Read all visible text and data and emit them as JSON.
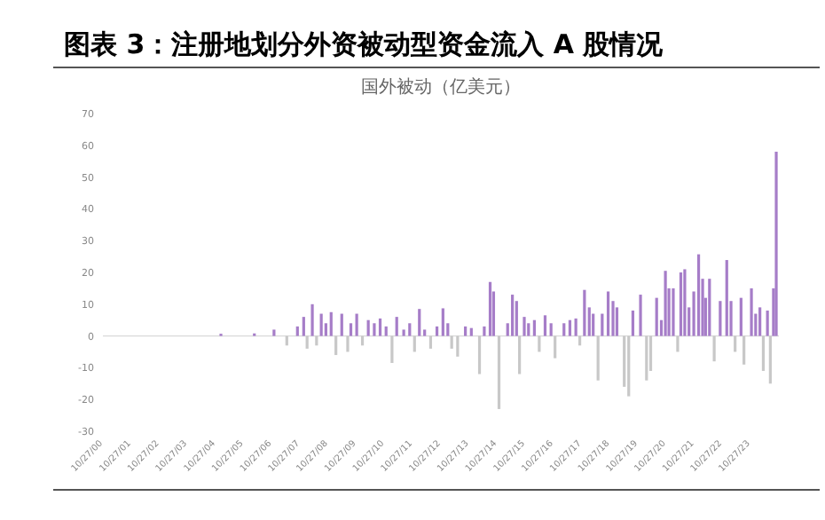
{
  "chart_data": {
    "type": "bar",
    "title": "图表 3：注册地划分外资被动型资金流入 A 股情况",
    "subtitle": "国外被动（亿美元）",
    "xlim": [
      "2000-10-27",
      "2024-10-31"
    ],
    "ylim": [
      -30,
      70
    ],
    "yticks": [
      -30,
      -20,
      -10,
      0,
      10,
      20,
      30,
      40,
      50,
      60,
      70
    ],
    "xticks": [
      {
        "value": "2000-10-27",
        "label": "10/27/00"
      },
      {
        "value": "2001-10-27",
        "label": "10/27/01"
      },
      {
        "value": "2002-10-27",
        "label": "10/27/02"
      },
      {
        "value": "2003-10-27",
        "label": "10/27/03"
      },
      {
        "value": "2004-10-27",
        "label": "10/27/04"
      },
      {
        "value": "2005-10-27",
        "label": "10/27/05"
      },
      {
        "value": "2006-10-27",
        "label": "10/27/06"
      },
      {
        "value": "2007-10-27",
        "label": "10/27/07"
      },
      {
        "value": "2008-10-27",
        "label": "10/27/08"
      },
      {
        "value": "2009-10-27",
        "label": "10/27/09"
      },
      {
        "value": "2010-10-27",
        "label": "10/27/10"
      },
      {
        "value": "2011-10-27",
        "label": "10/27/11"
      },
      {
        "value": "2012-10-27",
        "label": "10/27/12"
      },
      {
        "value": "2013-10-27",
        "label": "10/27/13"
      },
      {
        "value": "2014-10-27",
        "label": "10/27/14"
      },
      {
        "value": "2015-10-27",
        "label": "10/27/15"
      },
      {
        "value": "2016-10-27",
        "label": "10/27/16"
      },
      {
        "value": "2017-10-27",
        "label": "10/27/17"
      },
      {
        "value": "2018-10-27",
        "label": "10/27/18"
      },
      {
        "value": "2019-10-27",
        "label": "10/27/19"
      },
      {
        "value": "2020-10-27",
        "label": "10/27/20"
      },
      {
        "value": "2021-10-27",
        "label": "10/27/21"
      },
      {
        "value": "2022-10-27",
        "label": "10/27/22"
      },
      {
        "value": "2023-10-27",
        "label": "10/27/23"
      }
    ],
    "series": [
      {
        "color": "#a67dc8",
        "x": [
          "2005-01-05",
          "2006-03-15",
          "2006-11-25",
          "2007-09-25",
          "2007-12-15",
          "2008-04-05",
          "2008-07-30",
          "2008-09-28",
          "2008-12-05",
          "2009-04-22",
          "2009-08-18",
          "2009-11-02",
          "2010-04-01",
          "2010-06-18",
          "2010-09-02",
          "2010-11-18",
          "2011-04-05",
          "2011-07-05",
          "2011-09-20",
          "2012-01-24",
          "2012-04-01",
          "2012-09-08",
          "2012-11-25",
          "2013-01-27",
          "2013-09-12",
          "2013-11-28",
          "2014-05-15",
          "2014-07-30",
          "2014-09-13",
          "2015-03-14",
          "2015-05-15",
          "2015-07-08",
          "2015-10-16",
          "2015-12-10",
          "2016-02-24",
          "2016-07-12",
          "2016-09-27",
          "2017-03-14",
          "2017-05-30",
          "2017-08-15",
          "2017-12-05",
          "2018-02-05",
          "2018-03-28",
          "2018-07-23",
          "2018-10-08",
          "2018-12-10",
          "2019-01-30",
          "2019-08-25",
          "2019-12-02",
          "2020-06-28",
          "2020-08-28",
          "2020-10-20",
          "2020-12-05",
          "2021-01-30",
          "2021-05-08",
          "2021-06-28",
          "2021-08-22",
          "2021-10-23",
          "2021-12-25",
          "2022-02-15",
          "2022-03-25",
          "2022-05-15",
          "2022-10-01",
          "2022-12-25",
          "2023-02-18",
          "2023-06-28",
          "2023-11-10",
          "2024-01-04",
          "2024-02-28",
          "2024-06-05",
          "2024-08-22",
          "2024-09-27"
        ],
        "values": [
          0.7,
          0.8,
          2,
          3,
          6,
          10,
          7,
          4,
          7.5,
          7,
          4,
          7,
          5,
          4,
          5.5,
          3,
          6,
          2,
          4,
          8.5,
          2,
          3,
          8.7,
          4,
          3,
          2.5,
          3,
          17,
          14,
          4,
          13,
          11,
          6,
          4,
          5,
          6.5,
          4,
          4,
          5,
          5.5,
          14.5,
          9,
          7,
          7,
          14,
          11,
          9,
          8,
          13,
          12,
          5,
          20.5,
          15,
          15,
          20,
          21,
          9,
          14,
          25.7,
          18,
          12,
          18,
          11,
          23.9,
          11,
          12,
          15,
          7,
          9,
          8,
          15,
          58
        ]
      },
      {
        "color": "#c8c8c8",
        "x": [
          "2007-05-10",
          "2008-01-28",
          "2008-05-30",
          "2009-02-05",
          "2009-07-08",
          "2010-01-15",
          "2011-02-03",
          "2011-11-22",
          "2012-06-18",
          "2013-03-18",
          "2013-06-03",
          "2014-03-14",
          "2014-11-22",
          "2015-08-15",
          "2016-04-27",
          "2016-11-18",
          "2017-10-05",
          "2018-05-30",
          "2019-05-05",
          "2019-07-02",
          "2020-02-18",
          "2020-04-12",
          "2021-03-28",
          "2022-07-15",
          "2023-04-12",
          "2023-08-05",
          "2024-04-12",
          "2024-07-12"
        ],
        "values": [
          -3,
          -4,
          -3,
          -6,
          -5,
          -3,
          -8.5,
          -5,
          -4,
          -4,
          -6.5,
          -12,
          -23,
          -12,
          -5,
          -7,
          -3,
          -14,
          -16,
          -19,
          -14,
          -11,
          -5,
          -8,
          -5,
          -9,
          -11,
          -15
        ]
      }
    ]
  }
}
